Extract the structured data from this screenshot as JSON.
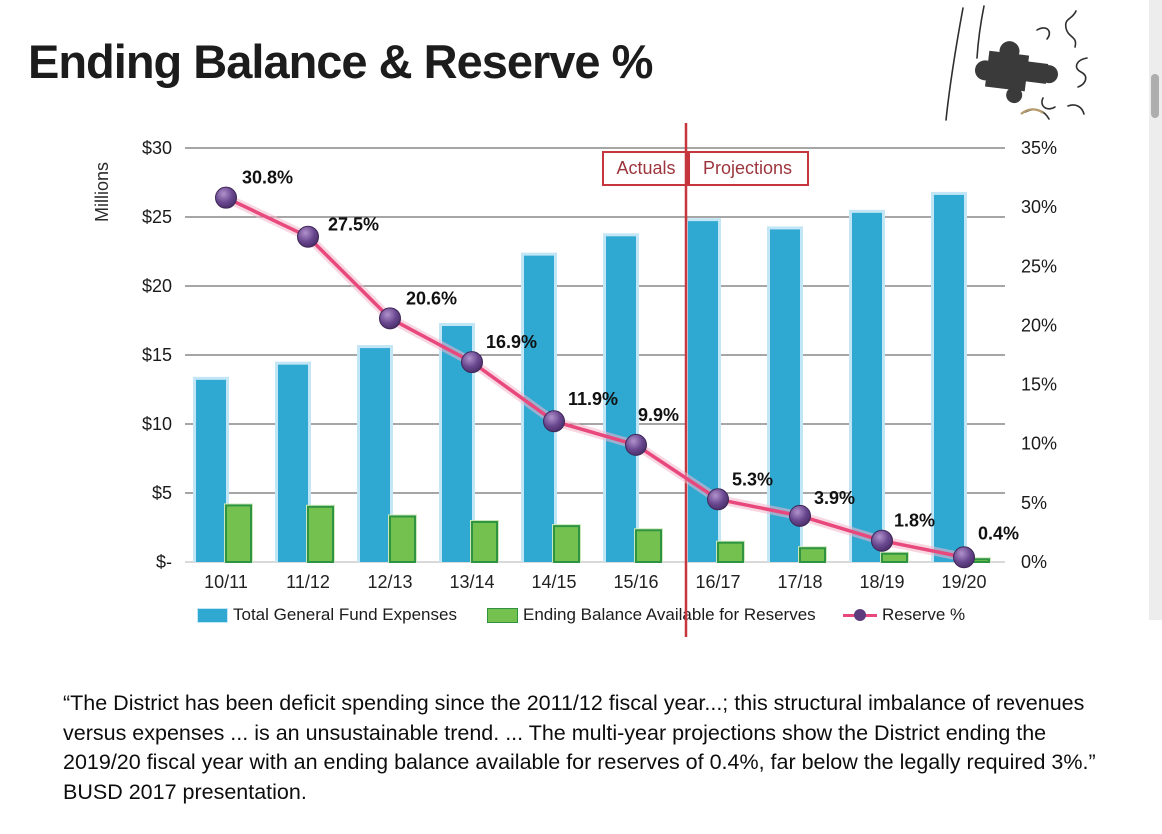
{
  "title": "Ending Balance & Reserve %",
  "chart_data": {
    "type": "combo",
    "categories": [
      "10/11",
      "11/12",
      "12/13",
      "13/14",
      "14/15",
      "15/16",
      "16/17",
      "17/18",
      "18/19",
      "19/20"
    ],
    "series": [
      {
        "name": "Total General Fund Expenses",
        "type": "bar",
        "axis": "left",
        "values": [
          13.2,
          14.3,
          15.5,
          17.1,
          22.2,
          23.6,
          24.7,
          24.1,
          25.3,
          26.6
        ]
      },
      {
        "name": "Ending Balance Available for Reserves",
        "type": "bar",
        "axis": "left",
        "values": [
          4.1,
          4.0,
          3.3,
          2.9,
          2.6,
          2.3,
          1.4,
          1.0,
          0.6,
          0.2
        ]
      },
      {
        "name": "Reserve %",
        "type": "line",
        "axis": "right",
        "values": [
          30.8,
          27.5,
          20.6,
          16.9,
          11.9,
          9.9,
          5.3,
          3.9,
          1.8,
          0.4
        ],
        "point_labels": [
          "30.8%",
          "27.5%",
          "20.6%",
          "16.9%",
          "11.9%",
          "9.9%",
          "5.3%",
          "3.9%",
          "1.8%",
          "0.4%"
        ]
      }
    ],
    "left_axis": {
      "title": "Millions",
      "ticks": [
        "$30",
        "$25",
        "$20",
        "$15",
        "$10",
        "$5",
        "$-"
      ],
      "min": 0,
      "max": 30
    },
    "right_axis": {
      "ticks": [
        "35%",
        "30%",
        "25%",
        "20%",
        "15%",
        "10%",
        "5%",
        "0%"
      ],
      "min": 0,
      "max": 35
    },
    "grid": "horizontal",
    "legend_position": "bottom",
    "divider": {
      "label_left": "Actuals",
      "label_right": "Projections",
      "between": [
        "15/16",
        "16/17"
      ]
    }
  },
  "quote": "“The District has been deficit spending since the 2011/12 fiscal year...; this structural imbalance of revenues versus expenses ... is an unsustainable trend. ... The multi-year projections show the District ending the 2019/20 fiscal year with an ending balance available for reserves of 0.4%, far below the legally required 3%.” BUSD 2017 presentation.",
  "colors": {
    "bar_expenses": "#2fa9d2",
    "bar_expenses_glow": "#c2e6f5",
    "bar_reserves": "#74c150",
    "bar_reserves_border": "#2e9442",
    "bar_reserves_glow": "#cde9bb",
    "line_reserve_pct": "#e8487c",
    "line_glow": "#f3b6cc",
    "marker_purple": "#5d3b7d",
    "divider_red": "#c5373c",
    "annotation_text": "#9c353c",
    "grid": "#4d4d4d",
    "axis_text": "#1a1a1a"
  }
}
